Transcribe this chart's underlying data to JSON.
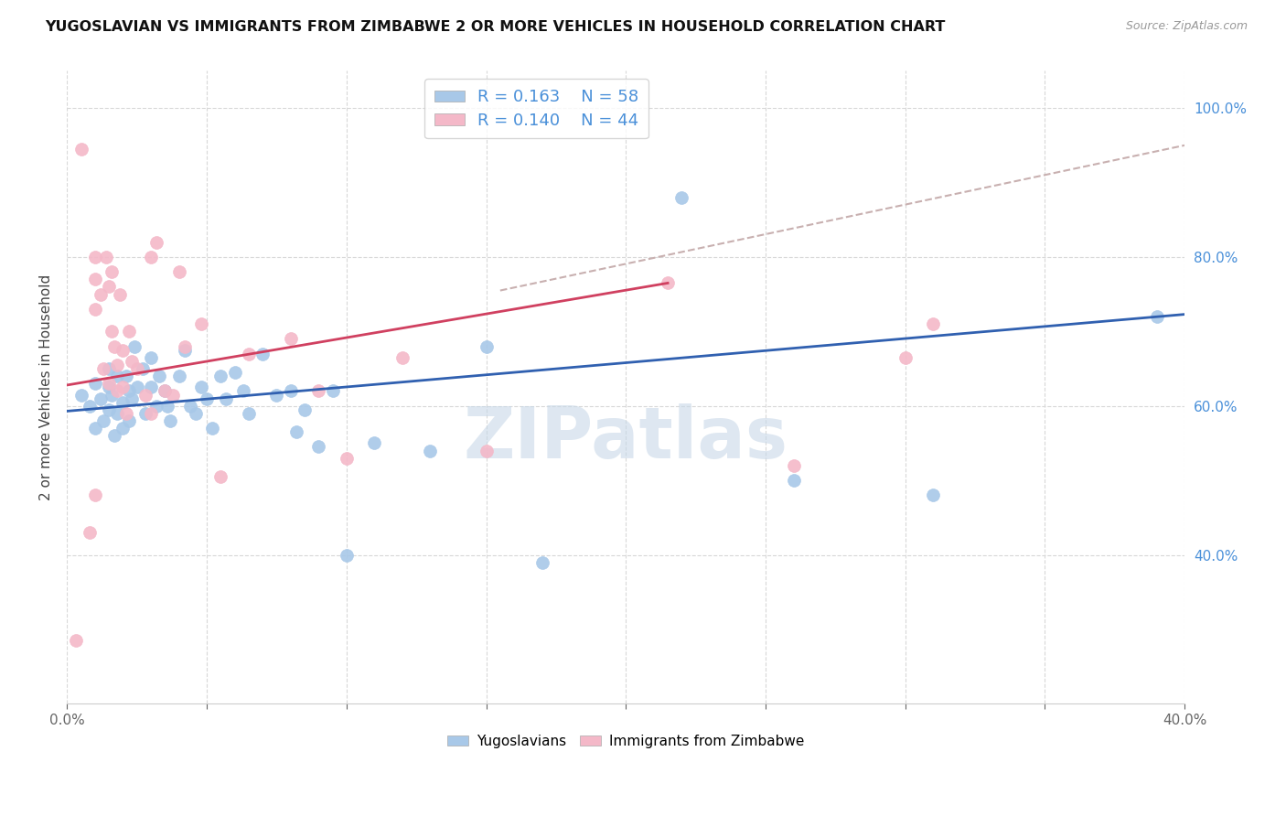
{
  "title": "YUGOSLAVIAN VS IMMIGRANTS FROM ZIMBABWE 2 OR MORE VEHICLES IN HOUSEHOLD CORRELATION CHART",
  "source": "Source: ZipAtlas.com",
  "ylabel": "2 or more Vehicles in Household",
  "xlim": [
    0.0,
    0.4
  ],
  "ylim": [
    0.2,
    1.05
  ],
  "xticks": [
    0.0,
    0.05,
    0.1,
    0.15,
    0.2,
    0.25,
    0.3,
    0.35,
    0.4
  ],
  "xticklabels": [
    "0.0%",
    "",
    "",
    "",
    "",
    "",
    "",
    "",
    "40.0%"
  ],
  "yticks": [
    0.4,
    0.6,
    0.8,
    1.0
  ],
  "yticklabels": [
    "40.0%",
    "60.0%",
    "80.0%",
    "100.0%"
  ],
  "legend_blue_R": "0.163",
  "legend_blue_N": "58",
  "legend_pink_R": "0.140",
  "legend_pink_N": "44",
  "legend_labels": [
    "Yugoslavians",
    "Immigrants from Zimbabwe"
  ],
  "blue_color": "#a8c8e8",
  "pink_color": "#f4b8c8",
  "blue_line_color": "#3060b0",
  "pink_line_color": "#d04060",
  "trend_dashed_color": "#c8b0b0",
  "watermark": "ZIPatlas",
  "watermark_color": "#c8d8e8",
  "blue_x": [
    0.005,
    0.008,
    0.01,
    0.01,
    0.012,
    0.013,
    0.015,
    0.015,
    0.015,
    0.016,
    0.017,
    0.018,
    0.018,
    0.02,
    0.02,
    0.021,
    0.022,
    0.022,
    0.023,
    0.024,
    0.025,
    0.027,
    0.028,
    0.03,
    0.03,
    0.032,
    0.033,
    0.035,
    0.036,
    0.037,
    0.04,
    0.042,
    0.044,
    0.046,
    0.048,
    0.05,
    0.052,
    0.055,
    0.057,
    0.06,
    0.063,
    0.065,
    0.07,
    0.075,
    0.08,
    0.082,
    0.085,
    0.09,
    0.095,
    0.1,
    0.11,
    0.13,
    0.15,
    0.17,
    0.22,
    0.26,
    0.31,
    0.39
  ],
  "blue_y": [
    0.615,
    0.6,
    0.63,
    0.57,
    0.61,
    0.58,
    0.625,
    0.595,
    0.65,
    0.615,
    0.56,
    0.59,
    0.64,
    0.605,
    0.57,
    0.64,
    0.62,
    0.58,
    0.61,
    0.68,
    0.625,
    0.65,
    0.59,
    0.665,
    0.625,
    0.6,
    0.64,
    0.62,
    0.6,
    0.58,
    0.64,
    0.675,
    0.6,
    0.59,
    0.625,
    0.61,
    0.57,
    0.64,
    0.61,
    0.645,
    0.62,
    0.59,
    0.67,
    0.615,
    0.62,
    0.565,
    0.595,
    0.545,
    0.62,
    0.4,
    0.55,
    0.54,
    0.68,
    0.39,
    0.88,
    0.5,
    0.48,
    0.72
  ],
  "pink_x": [
    0.003,
    0.005,
    0.008,
    0.01,
    0.01,
    0.01,
    0.01,
    0.012,
    0.013,
    0.014,
    0.015,
    0.015,
    0.016,
    0.016,
    0.017,
    0.018,
    0.018,
    0.019,
    0.02,
    0.02,
    0.021,
    0.022,
    0.023,
    0.025,
    0.028,
    0.03,
    0.03,
    0.032,
    0.035,
    0.038,
    0.04,
    0.042,
    0.048,
    0.055,
    0.065,
    0.08,
    0.09,
    0.1,
    0.12,
    0.15,
    0.215,
    0.26,
    0.3,
    0.31
  ],
  "pink_y": [
    0.285,
    0.945,
    0.43,
    0.8,
    0.77,
    0.73,
    0.48,
    0.75,
    0.65,
    0.8,
    0.76,
    0.63,
    0.78,
    0.7,
    0.68,
    0.655,
    0.62,
    0.75,
    0.675,
    0.625,
    0.59,
    0.7,
    0.66,
    0.65,
    0.615,
    0.8,
    0.59,
    0.82,
    0.62,
    0.615,
    0.78,
    0.68,
    0.71,
    0.505,
    0.67,
    0.69,
    0.62,
    0.53,
    0.665,
    0.54,
    0.765,
    0.52,
    0.665,
    0.71
  ],
  "blue_line_x0": 0.0,
  "blue_line_y0": 0.593,
  "blue_line_x1": 0.4,
  "blue_line_y1": 0.723,
  "pink_line_x0": 0.0,
  "pink_line_y0": 0.628,
  "pink_line_x1": 0.215,
  "pink_line_y1": 0.765,
  "dashed_line_x0": 0.155,
  "dashed_line_y0": 0.755,
  "dashed_line_x1": 0.4,
  "dashed_line_y1": 0.95
}
